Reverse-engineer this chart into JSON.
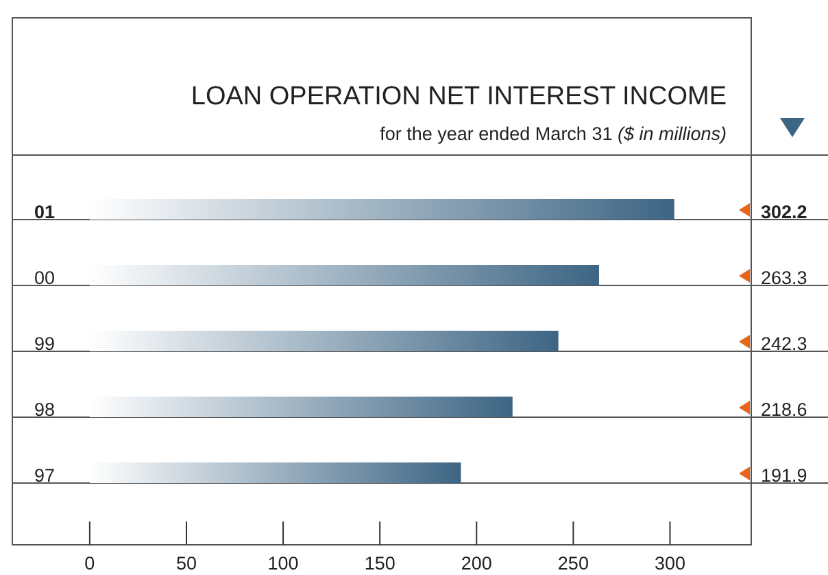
{
  "chart_data": {
    "type": "bar",
    "orientation": "horizontal",
    "title": "LOAN OPERATION NET INTEREST INCOME",
    "subtitle": "for the year ended March 31 ($ in millions)",
    "categories": [
      "01",
      "00",
      "99",
      "98",
      "97"
    ],
    "values": [
      302.2,
      263.3,
      242.3,
      218.6,
      191.9
    ],
    "color": "#3d6584",
    "data_labels": true,
    "xlim": [
      -40,
      342
    ],
    "xticks": [
      0,
      50,
      100,
      150,
      200,
      250,
      300
    ],
    "grid": false
  }
}
